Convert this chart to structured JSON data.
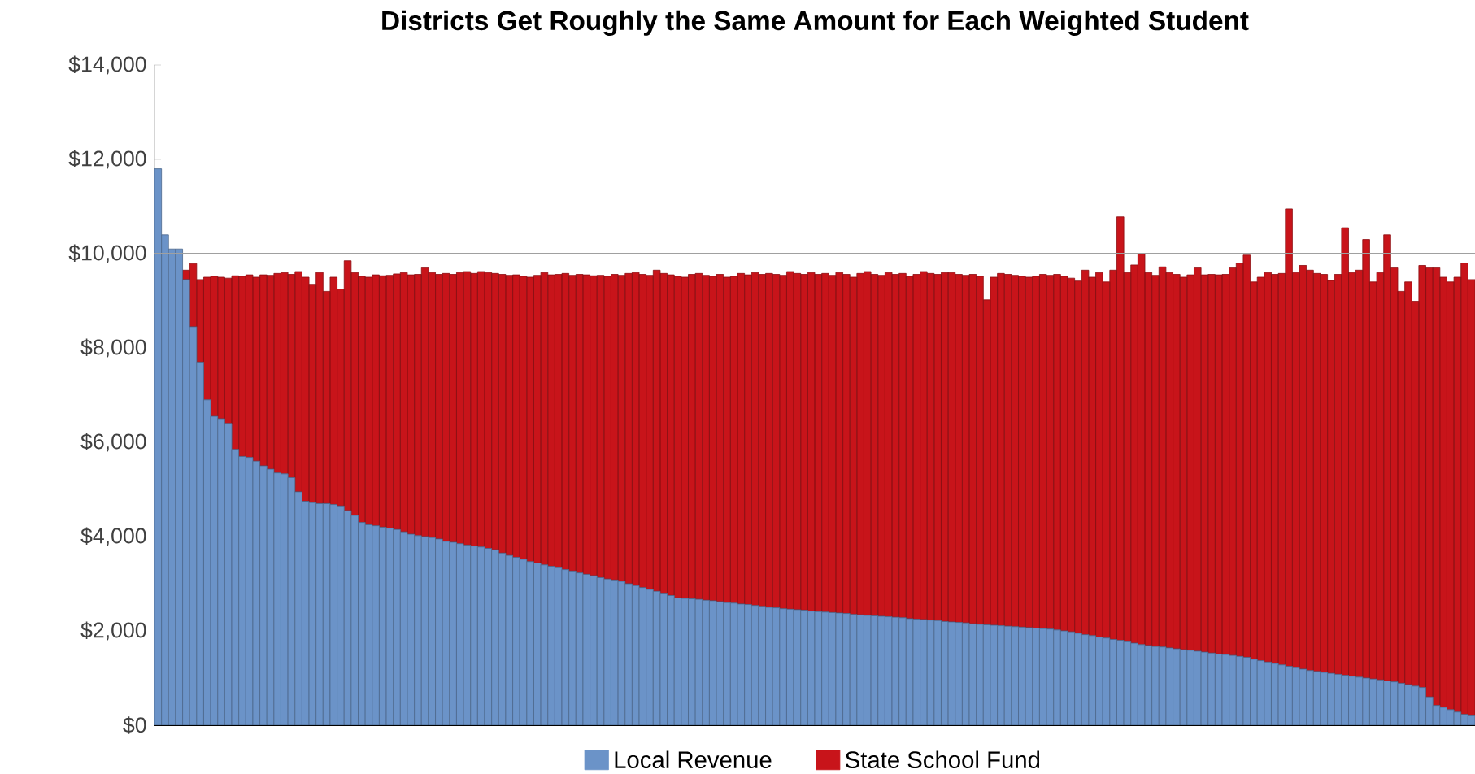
{
  "chart_data": {
    "type": "bar",
    "title": "Districts Get Roughly the Same Amount for Each Weighted Student",
    "stacked": true,
    "legend": "bottom",
    "tick_labels": "y",
    "categories": [
      null,
      null,
      null,
      null,
      null,
      null,
      null,
      null,
      null,
      null,
      null,
      null,
      null,
      null,
      null,
      null,
      null,
      null,
      null,
      null,
      null,
      null,
      null,
      null,
      null,
      null,
      null,
      null,
      null,
      null,
      null,
      null,
      null,
      null,
      null,
      null,
      null,
      null,
      null,
      null,
      null,
      null,
      null,
      null,
      null,
      null,
      null,
      null,
      null,
      null,
      null,
      null,
      null,
      null,
      null,
      null,
      null,
      null,
      null,
      null,
      null,
      null,
      null,
      null,
      null,
      null,
      null,
      null,
      null,
      null,
      null,
      null,
      null,
      null,
      null,
      null,
      null,
      null,
      null,
      null,
      null,
      null,
      null,
      null,
      null,
      null,
      null,
      null,
      null,
      null,
      null,
      null,
      null,
      null,
      null,
      null,
      null,
      null,
      null,
      null,
      null,
      null,
      null,
      null,
      null,
      null,
      null,
      null,
      null,
      null,
      null,
      null,
      null,
      null,
      null,
      null,
      null,
      null,
      null,
      null,
      null,
      null,
      null,
      null,
      null,
      null,
      null,
      null,
      null,
      null,
      null,
      null,
      null,
      null,
      null,
      null,
      null,
      null,
      null,
      null,
      null,
      null,
      null,
      null,
      null,
      null,
      null,
      null,
      null,
      null,
      null,
      null,
      null,
      null,
      null,
      null,
      null,
      null,
      null,
      null,
      null,
      null,
      null,
      null,
      null,
      null,
      null,
      null,
      null,
      null,
      null,
      null,
      null,
      null,
      null,
      null,
      null,
      null,
      null,
      null,
      null,
      null,
      null,
      null,
      null,
      null,
      null,
      null
    ],
    "series": [
      {
        "name": "Local Revenue",
        "color": "#6b93c8",
        "values": [
          11800,
          10400,
          10100,
          10100,
          9450,
          8450,
          7700,
          6900,
          6550,
          6500,
          6400,
          5850,
          5700,
          5680,
          5600,
          5500,
          5430,
          5350,
          5330,
          5250,
          4950,
          4750,
          4720,
          4700,
          4700,
          4680,
          4650,
          4550,
          4450,
          4300,
          4250,
          4230,
          4200,
          4180,
          4150,
          4100,
          4050,
          4020,
          4000,
          3980,
          3950,
          3900,
          3880,
          3850,
          3820,
          3800,
          3780,
          3750,
          3720,
          3650,
          3600,
          3560,
          3520,
          3470,
          3440,
          3400,
          3370,
          3340,
          3300,
          3270,
          3230,
          3200,
          3170,
          3130,
          3100,
          3080,
          3050,
          3000,
          2960,
          2920,
          2880,
          2840,
          2800,
          2750,
          2700,
          2690,
          2680,
          2670,
          2650,
          2640,
          2620,
          2600,
          2590,
          2570,
          2560,
          2540,
          2520,
          2500,
          2490,
          2470,
          2460,
          2450,
          2440,
          2420,
          2410,
          2400,
          2390,
          2380,
          2370,
          2350,
          2340,
          2330,
          2320,
          2310,
          2300,
          2290,
          2280,
          2260,
          2250,
          2240,
          2230,
          2220,
          2200,
          2190,
          2180,
          2170,
          2150,
          2140,
          2130,
          2120,
          2110,
          2100,
          2090,
          2080,
          2070,
          2060,
          2050,
          2040,
          2020,
          2000,
          1980,
          1950,
          1920,
          1900,
          1870,
          1850,
          1820,
          1800,
          1770,
          1740,
          1710,
          1690,
          1670,
          1660,
          1640,
          1620,
          1600,
          1590,
          1570,
          1550,
          1530,
          1510,
          1500,
          1480,
          1460,
          1440,
          1400,
          1370,
          1340,
          1310,
          1280,
          1250,
          1220,
          1190,
          1160,
          1140,
          1120,
          1100,
          1080,
          1060,
          1040,
          1020,
          1000,
          980,
          960,
          940,
          920,
          890,
          860,
          830,
          800,
          600,
          420,
          380,
          330,
          280,
          230,
          200
        ]
      },
      {
        "name": "State School Fund",
        "color": "#c8141a",
        "values": [
          0,
          0,
          0,
          0,
          200,
          1340,
          1750,
          2600,
          2970,
          3000,
          3080,
          3680,
          3820,
          3870,
          3900,
          4050,
          4110,
          4230,
          4270,
          4310,
          4670,
          4750,
          4630,
          4900,
          4500,
          4820,
          4600,
          5300,
          5150,
          5220,
          5250,
          5320,
          5330,
          5360,
          5420,
          5500,
          5500,
          5540,
          5700,
          5620,
          5610,
          5680,
          5680,
          5750,
          5800,
          5780,
          5840,
          5850,
          5860,
          5910,
          5940,
          5990,
          6000,
          6030,
          6100,
          6200,
          6180,
          6220,
          6280,
          6270,
          6330,
          6350,
          6360,
          6410,
          6420,
          6480,
          6490,
          6580,
          6640,
          6640,
          6660,
          6810,
          6780,
          6800,
          6820,
          6810,
          6880,
          6910,
          6890,
          6880,
          6940,
          6900,
          6930,
          7010,
          6990,
          7060,
          7040,
          7080,
          7070,
          7070,
          7160,
          7130,
          7120,
          7180,
          7150,
          7180,
          7150,
          7220,
          7190,
          7150,
          7240,
          7290,
          7240,
          7230,
          7300,
          7270,
          7300,
          7260,
          7310,
          7380,
          7350,
          7340,
          7400,
          7410,
          7380,
          7370,
          7410,
          7380,
          6890,
          7380,
          7470,
          7460,
          7450,
          7440,
          7430,
          7460,
          7510,
          7500,
          7540,
          7520,
          7500,
          7470,
          7730,
          7600,
          7730,
          7550,
          7830,
          8980,
          7830,
          8020,
          8290,
          7910,
          7870,
          8060,
          7960,
          7940,
          7900,
          7960,
          8130,
          8000,
          8030,
          8040,
          8060,
          8220,
          8340,
          8530,
          8000,
          8130,
          8260,
          8250,
          8300,
          9700,
          8380,
          8560,
          8490,
          8440,
          8440,
          8330,
          8480,
          9490,
          8560,
          8630,
          9300,
          8420,
          8640,
          9460,
          8780,
          8310,
          8540,
          8160,
          8950,
          9100,
          9280,
          9120,
          9070,
          9220,
          9570,
          9250
        ]
      }
    ],
    "ylim": [
      0,
      14000
    ],
    "yticks": [
      {
        "value": 0,
        "label": "$0"
      },
      {
        "value": 2000,
        "label": "$2,000"
      },
      {
        "value": 4000,
        "label": "$4,000"
      },
      {
        "value": 6000,
        "label": "$6,000"
      },
      {
        "value": 8000,
        "label": "$8,000"
      },
      {
        "value": 10000,
        "label": "$10,000"
      },
      {
        "value": 12000,
        "label": "$12,000"
      },
      {
        "value": 14000,
        "label": "$14,000"
      }
    ],
    "ref_lines": [
      {
        "axis": "y",
        "value": 10000,
        "color": "#a0a0a0"
      }
    ]
  }
}
